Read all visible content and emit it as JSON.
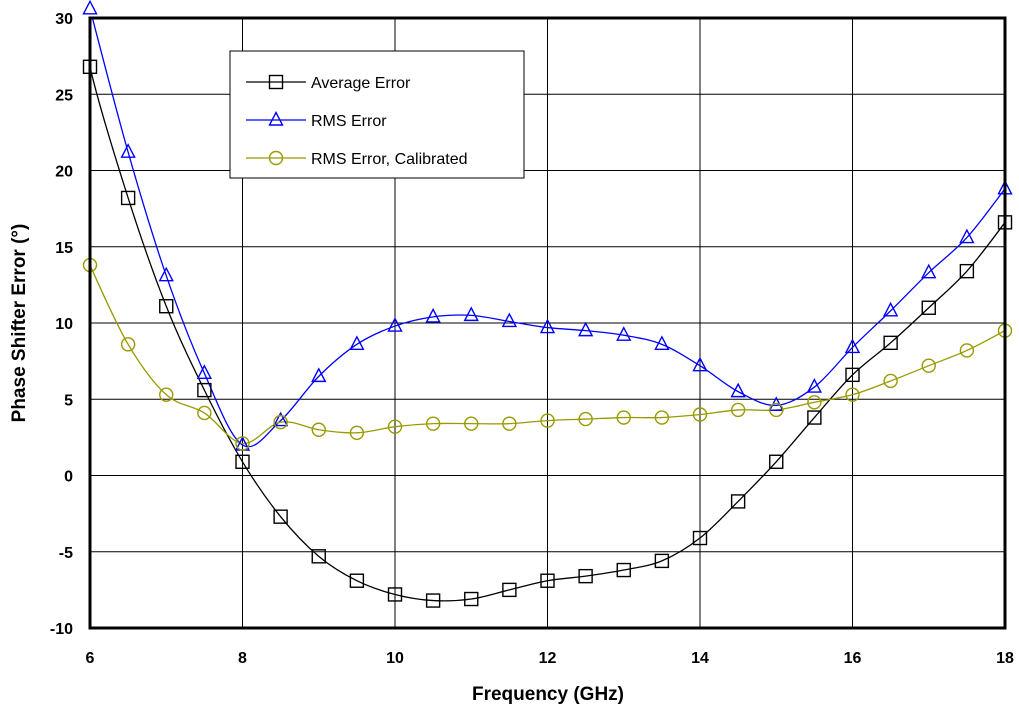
{
  "chart_data": {
    "type": "line",
    "title": "",
    "xlabel": "Frequency (GHz)",
    "ylabel": "Phase Shifter Error (°)",
    "xlim": [
      6,
      18
    ],
    "ylim": [
      -10,
      30
    ],
    "xticks": [
      "6",
      "8",
      "10",
      "12",
      "14",
      "16",
      "18"
    ],
    "xtick_values": [
      6,
      8,
      10,
      12,
      14,
      16,
      18
    ],
    "yticks": [
      "30",
      "25",
      "20",
      "15",
      "10",
      "5",
      "0",
      "-5",
      "-10"
    ],
    "ytick_values": [
      30,
      25,
      20,
      15,
      10,
      5,
      0,
      -5,
      -10
    ],
    "grid": true,
    "legend_position": "top-left",
    "series": [
      {
        "name": "Average Error",
        "color": "#000000",
        "marker": "square",
        "x": [
          6,
          6.5,
          7,
          7.5,
          8,
          8.5,
          9,
          9.5,
          10,
          10.5,
          11,
          11.5,
          12,
          12.5,
          13,
          13.5,
          14,
          14.5,
          15,
          15.5,
          16,
          16.5,
          17,
          17.5,
          18
        ],
        "y": [
          26.8,
          18.2,
          11.1,
          5.6,
          0.9,
          -2.7,
          -5.3,
          -6.9,
          -7.8,
          -8.2,
          -8.1,
          -7.5,
          -6.9,
          -6.6,
          -6.2,
          -5.6,
          -4.1,
          -1.7,
          0.9,
          3.8,
          6.6,
          8.7,
          11.0,
          13.4,
          16.6
        ],
        "line_x": [
          5.9,
          18
        ],
        "line_y": [
          31.5,
          17.5
        ]
      },
      {
        "name": "RMS Error",
        "color": "#0000ff",
        "marker": "triangle",
        "x": [
          6,
          6.5,
          7,
          7.5,
          8,
          8.5,
          9,
          9.5,
          10,
          10.5,
          11,
          11.5,
          12,
          12.5,
          13,
          13.5,
          14,
          14.5,
          15,
          15.5,
          16,
          16.5,
          17,
          17.5,
          18
        ],
        "y": [
          30.6,
          21.2,
          13.1,
          6.7,
          2.0,
          3.6,
          6.5,
          8.6,
          9.8,
          10.4,
          10.5,
          10.1,
          9.7,
          9.5,
          9.2,
          8.6,
          7.2,
          5.5,
          4.6,
          5.8,
          8.4,
          10.8,
          13.3,
          15.6,
          18.8
        ],
        "line_x": [
          5.9,
          18
        ],
        "line_y": [
          32.5,
          19.5
        ]
      },
      {
        "name": "RMS Error, Calibrated",
        "color": "#999900",
        "marker": "circle",
        "x": [
          6,
          6.5,
          7,
          7.5,
          8,
          8.5,
          9,
          9.5,
          10,
          10.5,
          11,
          11.5,
          12,
          12.5,
          13,
          13.5,
          14,
          14.5,
          15,
          15.5,
          16,
          16.5,
          17,
          17.5,
          18
        ],
        "y": [
          13.8,
          8.6,
          5.3,
          4.1,
          2.1,
          3.5,
          3.0,
          2.8,
          3.2,
          3.4,
          3.4,
          3.4,
          3.6,
          3.7,
          3.8,
          3.8,
          4.0,
          4.3,
          4.3,
          4.8,
          5.3,
          6.2,
          7.2,
          8.2,
          9.5
        ],
        "line_x": [
          5.9,
          18
        ],
        "line_y": [
          15.3,
          9.8
        ]
      }
    ]
  }
}
